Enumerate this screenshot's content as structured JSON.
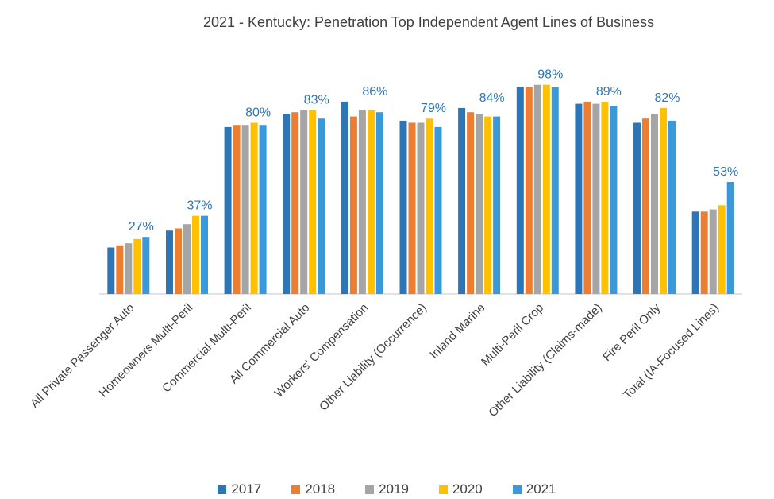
{
  "chart_data": {
    "type": "bar",
    "title": "2021 - Kentucky:  Penetration Top Independent Agent Lines of Business",
    "categories": [
      "All Private Passenger Auto",
      "Homeowners Multi-Peril",
      "Commercial Multi-Peril",
      "All Commercial Auto",
      "Workers' Compensation",
      "Other Liability (Occurrence)",
      "Inland Marine",
      "Multi-Peril Crop",
      "Other Liability (Claims-made)",
      "Fire Peril Only",
      "Total (IA-Focused Lines)"
    ],
    "series": [
      {
        "name": "2017",
        "color": "#2E75B6",
        "values": [
          22,
          30,
          79,
          85,
          91,
          82,
          88,
          98,
          90,
          81,
          39
        ]
      },
      {
        "name": "2018",
        "color": "#ED7D31",
        "values": [
          23,
          31,
          80,
          86,
          84,
          81,
          86,
          98,
          91,
          83,
          39
        ]
      },
      {
        "name": "2019",
        "color": "#A5A5A5",
        "values": [
          24,
          33,
          80,
          87,
          87,
          81,
          85,
          99,
          90,
          85,
          40
        ]
      },
      {
        "name": "2020",
        "color": "#FFC000",
        "values": [
          26,
          37,
          81,
          87,
          87,
          83,
          84,
          99,
          91,
          88,
          42
        ]
      },
      {
        "name": "2021",
        "color": "#3A9AD9",
        "values": [
          27,
          37,
          80,
          83,
          86,
          79,
          84,
          98,
          89,
          82,
          53
        ]
      }
    ],
    "data_labels": [
      "27%",
      "37%",
      "80%",
      "83%",
      "86%",
      "79%",
      "84%",
      "98%",
      "89%",
      "82%",
      "53%"
    ],
    "label_color": "#2E75B6",
    "ylim": [
      0,
      100
    ],
    "xlabel": "",
    "ylabel": "",
    "grid": false,
    "legend_position": "bottom"
  }
}
